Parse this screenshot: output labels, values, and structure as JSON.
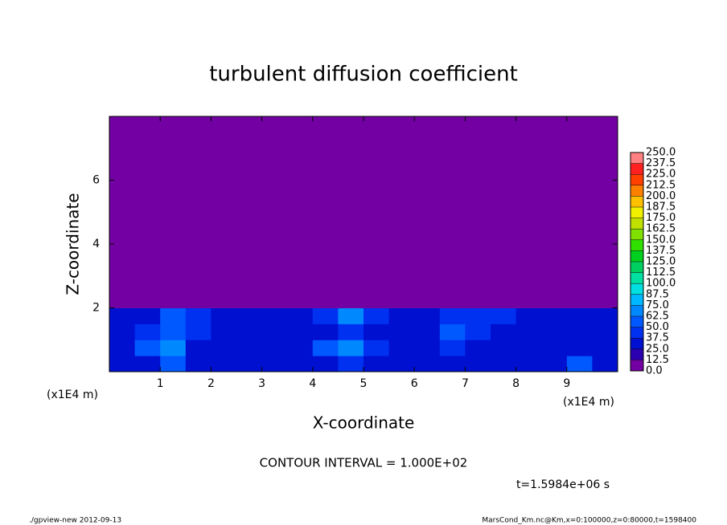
{
  "chart_data": {
    "type": "heatmap",
    "title": "turbulent diffusion coefficient",
    "x_label": "X-coordinate",
    "y_label": "Z-coordinate",
    "x_unit": "(x1E4 m)",
    "xlim": [
      0,
      10
    ],
    "ylim": [
      0,
      8
    ],
    "xticks": [
      1,
      2,
      3,
      4,
      5,
      6,
      7,
      8,
      9
    ],
    "yticks": [
      2,
      4,
      6
    ],
    "x_edges": [
      0,
      0.5,
      1,
      1.5,
      2,
      2.5,
      3,
      3.5,
      4,
      4.5,
      5,
      5.5,
      6,
      6.5,
      7,
      7.5,
      8,
      8.5,
      9,
      9.5,
      10
    ],
    "z_edges": [
      0,
      0.5,
      1,
      1.5,
      2,
      8
    ],
    "values": [
      [
        30,
        30,
        55,
        30,
        25,
        25,
        30,
        25,
        30,
        40,
        30,
        25,
        30,
        35,
        30,
        25,
        30,
        30,
        55,
        30
      ],
      [
        25,
        60,
        65,
        25,
        25,
        25,
        25,
        30,
        50,
        70,
        45,
        35,
        30,
        40,
        35,
        25,
        30,
        25,
        30,
        25
      ],
      [
        25,
        40,
        55,
        40,
        25,
        25,
        25,
        30,
        30,
        45,
        35,
        30,
        25,
        60,
        45,
        25,
        25,
        25,
        25,
        25
      ],
      [
        30,
        35,
        50,
        45,
        30,
        25,
        30,
        35,
        45,
        65,
        40,
        30,
        30,
        45,
        40,
        45,
        30,
        30,
        25,
        35
      ],
      [
        0,
        0,
        0,
        0,
        0,
        0,
        0,
        0,
        0,
        0,
        0,
        0,
        0,
        0,
        0,
        0,
        0,
        0,
        0,
        0
      ]
    ],
    "levels": [
      {
        "value": 0,
        "label": "0.0"
      },
      {
        "value": 12.5,
        "label": "12.5"
      },
      {
        "value": 25,
        "label": "25.0"
      },
      {
        "value": 37.5,
        "label": "37.5"
      },
      {
        "value": 50,
        "label": "50.0"
      },
      {
        "value": 62.5,
        "label": "62.5"
      },
      {
        "value": 75,
        "label": "75.0"
      },
      {
        "value": 87.5,
        "label": "87.5"
      },
      {
        "value": 100,
        "label": "100.0"
      },
      {
        "value": 112.5,
        "label": "112.5"
      },
      {
        "value": 125,
        "label": "125.0"
      },
      {
        "value": 137.5,
        "label": "137.5"
      },
      {
        "value": 150,
        "label": "150.0"
      },
      {
        "value": 162.5,
        "label": "162.5"
      },
      {
        "value": 175,
        "label": "175.0"
      },
      {
        "value": 187.5,
        "label": "187.5"
      },
      {
        "value": 200,
        "label": "200.0"
      },
      {
        "value": 212.5,
        "label": "212.5"
      },
      {
        "value": 225,
        "label": "225.0"
      },
      {
        "value": 237.5,
        "label": "237.5"
      },
      {
        "value": 250,
        "label": "250.0"
      }
    ],
    "colors": [
      "#7300a3",
      "#2a00b0",
      "#0010d0",
      "#0030f0",
      "#0058ff",
      "#0088ff",
      "#00b8ff",
      "#00e0e0",
      "#00e0a0",
      "#00d060",
      "#00d020",
      "#30e000",
      "#80e000",
      "#c0e000",
      "#f0f000",
      "#ffc000",
      "#ff8000",
      "#ff4000",
      "#ff2020",
      "#ff8080"
    ],
    "contour_note": "CONTOUR INTERVAL = 1.000E+02",
    "time_note": "t=1.5984e+06 s",
    "footer_left": "./gpview-new  2012-09-13",
    "footer_right": "MarsCond_Km.nc@Km,x=0:100000,z=0:80000,t=1598400"
  }
}
